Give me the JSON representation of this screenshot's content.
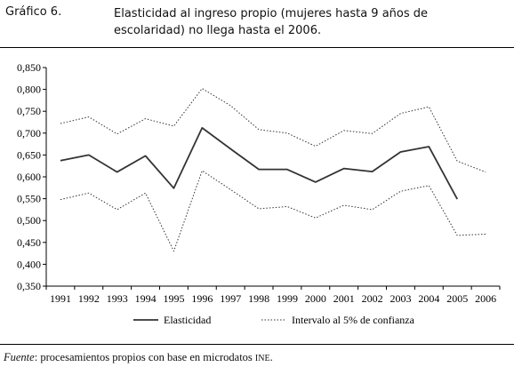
{
  "header": {
    "label": "Gráfico 6.",
    "title_line1": "Elasticidad al ingreso propio (mujeres hasta 9 años de",
    "title_line2": "escolaridad) no llega hasta el 2006."
  },
  "source": {
    "prefix": "Fuente",
    "text": ": procesamientos propios con base en microdatos ",
    "org": "INE",
    "suffix": "."
  },
  "chart_data": {
    "type": "line",
    "categories": [
      "1991",
      "1992",
      "1993",
      "1994",
      "1995",
      "1996",
      "1997",
      "1998",
      "1999",
      "2000",
      "2001",
      "2002",
      "2003",
      "2004",
      "2005",
      "2006"
    ],
    "ylim": [
      0.35,
      0.85
    ],
    "yticks": [
      "0,850",
      "0,800",
      "0,750",
      "0,700",
      "0,650",
      "0,600",
      "0,550",
      "0,500",
      "0,450",
      "0,400",
      "0,350"
    ],
    "series": [
      {
        "name": "Elasticidad",
        "style": "solid",
        "color": "#333333",
        "values": [
          0.637,
          0.65,
          0.611,
          0.648,
          0.574,
          0.712,
          0.664,
          0.617,
          0.617,
          0.588,
          0.619,
          0.612,
          0.657,
          0.669,
          0.549,
          null
        ]
      },
      {
        "name": "Intervalo al 5% de confianza",
        "style": "dotted",
        "color": "#333333",
        "values": [
          0.722,
          0.737,
          0.698,
          0.733,
          0.716,
          0.802,
          0.763,
          0.708,
          0.7,
          0.67,
          0.706,
          0.699,
          0.745,
          0.76,
          0.636,
          0.611
        ]
      },
      {
        "name": "Intervalo al 5% de confianza",
        "style": "dotted",
        "color": "#333333",
        "legend": false,
        "values": [
          0.548,
          0.563,
          0.525,
          0.563,
          0.43,
          0.614,
          0.571,
          0.527,
          0.532,
          0.506,
          0.535,
          0.525,
          0.567,
          0.58,
          0.466,
          0.469
        ]
      }
    ],
    "legend_position": "bottom",
    "grid": false
  }
}
